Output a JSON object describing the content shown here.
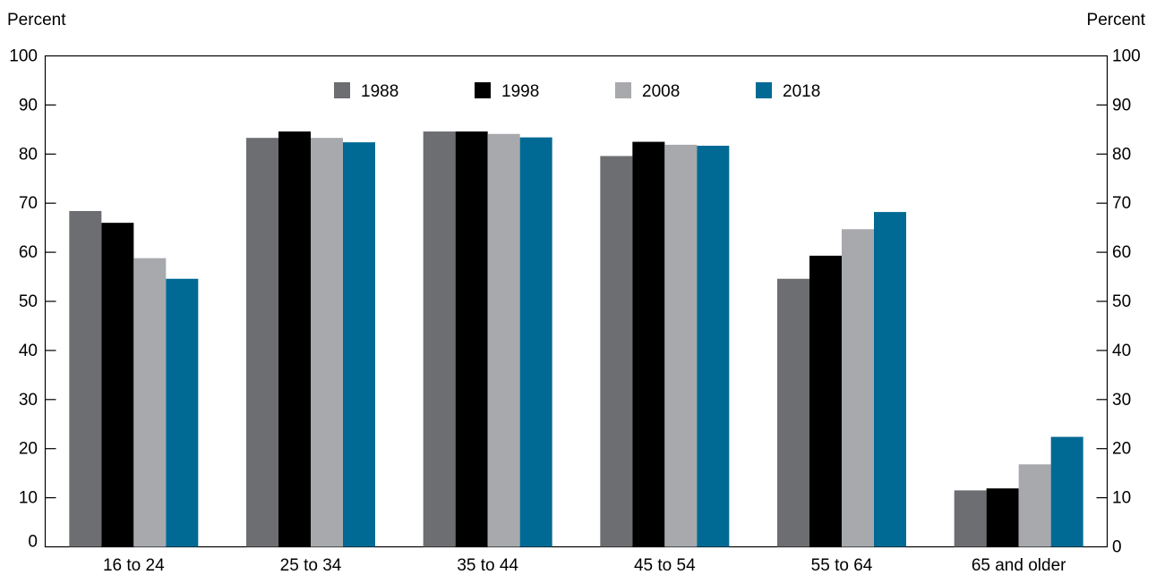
{
  "chart_data": {
    "type": "bar",
    "categories": [
      "16 to 24",
      "25 to 34",
      "35 to 44",
      "45 to 54",
      "55 to 64",
      "65 and older"
    ],
    "series": [
      {
        "name": "1988",
        "color": "#6d6e71",
        "values": [
          68.4,
          83.3,
          84.6,
          79.6,
          54.6,
          11.5
        ]
      },
      {
        "name": "1998",
        "color": "#000000",
        "values": [
          66.0,
          84.6,
          84.6,
          82.5,
          59.3,
          11.9
        ]
      },
      {
        "name": "2008",
        "color": "#a7a9ac",
        "values": [
          58.8,
          83.3,
          84.1,
          81.9,
          64.7,
          16.8
        ]
      },
      {
        "name": "2018",
        "color": "#006a94",
        "values": [
          54.6,
          82.4,
          83.4,
          81.7,
          68.2,
          22.4
        ]
      }
    ],
    "ylim": [
      0,
      100
    ],
    "yticks": [
      0,
      10,
      20,
      30,
      40,
      50,
      60,
      70,
      80,
      90,
      100
    ],
    "ylabel_left": "Percent",
    "ylabel_right": "Percent",
    "legend_position": "top-center",
    "grid": false
  }
}
